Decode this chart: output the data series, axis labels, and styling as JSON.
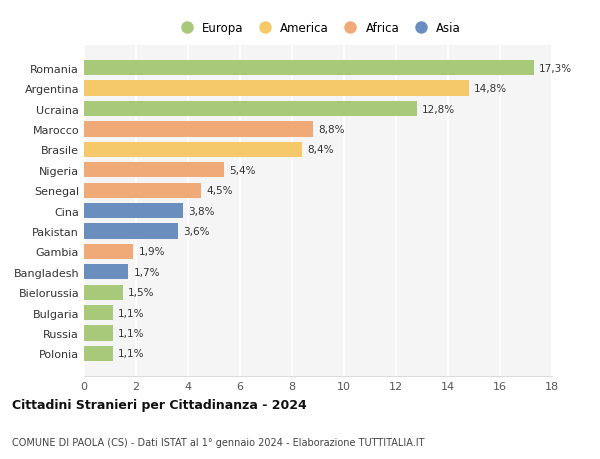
{
  "categories": [
    "Romania",
    "Argentina",
    "Ucraina",
    "Marocco",
    "Brasile",
    "Nigeria",
    "Senegal",
    "Cina",
    "Pakistan",
    "Gambia",
    "Bangladesh",
    "Bielorussia",
    "Bulgaria",
    "Russia",
    "Polonia"
  ],
  "values": [
    17.3,
    14.8,
    12.8,
    8.8,
    8.4,
    5.4,
    4.5,
    3.8,
    3.6,
    1.9,
    1.7,
    1.5,
    1.1,
    1.1,
    1.1
  ],
  "labels": [
    "17,3%",
    "14,8%",
    "12,8%",
    "8,8%",
    "8,4%",
    "5,4%",
    "4,5%",
    "3,8%",
    "3,6%",
    "1,9%",
    "1,7%",
    "1,5%",
    "1,1%",
    "1,1%",
    "1,1%"
  ],
  "colors": [
    "#a8c87a",
    "#f5c96a",
    "#a8c87a",
    "#f0aa78",
    "#f5c96a",
    "#f0aa78",
    "#f0aa78",
    "#6a8fbf",
    "#6a8fbf",
    "#f0aa78",
    "#6a8fbf",
    "#a8c87a",
    "#a8c87a",
    "#a8c87a",
    "#a8c87a"
  ],
  "legend": [
    {
      "label": "Europa",
      "color": "#a8c87a"
    },
    {
      "label": "America",
      "color": "#f5c96a"
    },
    {
      "label": "Africa",
      "color": "#f0aa78"
    },
    {
      "label": "Asia",
      "color": "#6a8fbf"
    }
  ],
  "xlim": [
    0,
    18
  ],
  "xticks": [
    0,
    2,
    4,
    6,
    8,
    10,
    12,
    14,
    16,
    18
  ],
  "title": "Cittadini Stranieri per Cittadinanza - 2024",
  "subtitle": "COMUNE DI PAOLA (CS) - Dati ISTAT al 1° gennaio 2024 - Elaborazione TUTTITALIA.IT",
  "background_color": "#ffffff",
  "plot_bg_color": "#f5f5f5",
  "grid_color": "#ffffff"
}
